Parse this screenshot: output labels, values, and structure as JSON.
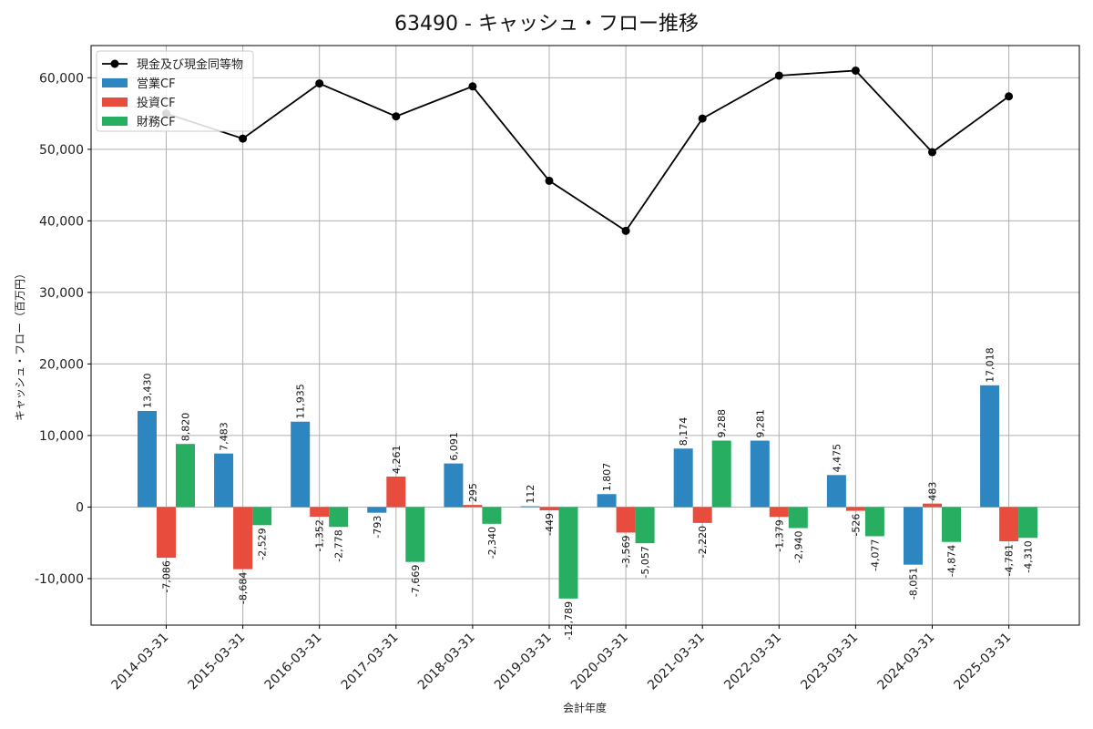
{
  "chart_data": {
    "type": "bar",
    "title": "63490 - キャッシュ・フロー推移",
    "xlabel": "会計年度",
    "ylabel": "キャッシュ・フロー（百万円）",
    "categories": [
      "2014-03-31",
      "2015-03-31",
      "2016-03-31",
      "2017-03-31",
      "2018-03-31",
      "2019-03-31",
      "2020-03-31",
      "2021-03-31",
      "2022-03-31",
      "2023-03-31",
      "2024-03-31",
      "2025-03-31"
    ],
    "ylim": [
      -16500,
      64500
    ],
    "yticks": [
      -10000,
      0,
      10000,
      20000,
      30000,
      40000,
      50000,
      60000
    ],
    "ytick_labels": [
      "-10,000",
      "0",
      "10,000",
      "20,000",
      "30,000",
      "40,000",
      "50,000",
      "60,000"
    ],
    "grid": true,
    "legend_position": "top-left",
    "series": [
      {
        "name": "営業CF",
        "type": "bar",
        "color": "#2e86c1",
        "values": [
          13430,
          7483,
          11935,
          -793,
          6091,
          112,
          1807,
          8174,
          9281,
          4475,
          -8051,
          17018
        ],
        "labels": [
          "13,430",
          "7,483",
          "11,935",
          "-793",
          "6,091",
          "112",
          "1,807",
          "8,174",
          "9,281",
          "4,475",
          "-8,051",
          "17,018"
        ]
      },
      {
        "name": "投資CF",
        "type": "bar",
        "color": "#e74c3c",
        "values": [
          -7086,
          -8684,
          -1352,
          4261,
          295,
          -449,
          -3569,
          -2220,
          -1379,
          -526,
          483,
          -4781
        ],
        "labels": [
          "-7,086",
          "-8,684",
          "-1,352",
          "4,261",
          "295",
          "-449",
          "-3,569",
          "-2,220",
          "-1,379",
          "-526",
          "483",
          "-4,781"
        ]
      },
      {
        "name": "財務CF",
        "type": "bar",
        "color": "#27ae60",
        "values": [
          8820,
          -2529,
          -2778,
          -7669,
          -2340,
          -12789,
          -5057,
          9288,
          -2940,
          -4077,
          -4874,
          -4310
        ],
        "labels": [
          "8,820",
          "-2,529",
          "-2,778",
          "-7,669",
          "-2,340",
          "-12,789",
          "-5,057",
          "9,288",
          "-2,940",
          "-4,077",
          "-4,874",
          "-4,310"
        ]
      }
    ],
    "line_series": {
      "name": "現金及び現金同等物",
      "color": "#000000",
      "values": [
        55000,
        51500,
        59200,
        54600,
        58800,
        45600,
        38600,
        54300,
        60300,
        61000,
        49600,
        57400
      ]
    }
  }
}
